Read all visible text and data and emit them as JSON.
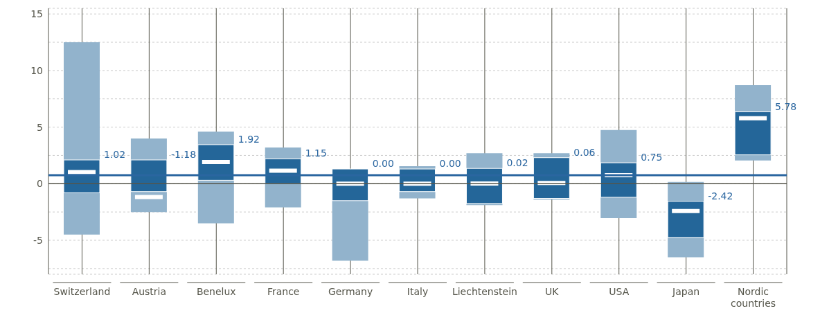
{
  "chart_data": {
    "type": "box",
    "categories": [
      "Switzerland",
      "Austria",
      "Benelux",
      "France",
      "Germany",
      "Italy",
      "Liechtenstein",
      "UK",
      "USA",
      "Japan",
      "Nordic countries"
    ],
    "series": [
      {
        "color": "#246699",
        "boxes": [
          {
            "low": -4.5,
            "q1": -0.8,
            "median": 1.02,
            "q3": 2.1,
            "high": 12.5
          },
          {
            "low": -2.5,
            "q1": -0.7,
            "median": -1.18,
            "q3": 2.1,
            "high": 4.0
          },
          {
            "low": -3.5,
            "q1": 0.3,
            "median": 1.92,
            "q3": 3.45,
            "high": 4.6
          },
          {
            "low": -2.1,
            "q1": 0.0,
            "median": 1.15,
            "q3": 2.2,
            "high": 3.2
          },
          {
            "low": -6.8,
            "q1": -1.5,
            "median": 0.0,
            "q3": 1.3,
            "high": 1.3
          },
          {
            "low": -1.3,
            "q1": -0.7,
            "median": 0.0,
            "q3": 1.3,
            "high": 1.55
          },
          {
            "low": -1.9,
            "q1": -1.75,
            "median": 0.02,
            "q3": 1.35,
            "high": 2.7
          },
          {
            "low": -1.4,
            "q1": -1.3,
            "median": 0.06,
            "q3": 2.3,
            "high": 2.7
          },
          {
            "low": -3.05,
            "q1": -1.2,
            "median": 0.75,
            "q3": 1.85,
            "high": 4.75
          },
          {
            "low": -6.5,
            "q1": -4.75,
            "median": -2.42,
            "q3": -1.55,
            "high": 0.15
          },
          {
            "low": 2.05,
            "q1": 2.55,
            "median": 5.78,
            "q3": 6.35,
            "high": 8.7
          }
        ],
        "value_labels": [
          "1.02",
          "-1.18",
          "1.92",
          "1.15",
          "0.00",
          "0.00",
          "0.02",
          "0.06",
          "0.75",
          "-2.42",
          "5.78"
        ]
      }
    ],
    "ylim": [
      -8,
      15.5
    ],
    "yticks": [
      {
        "value": -7.5,
        "label": null
      },
      -5,
      {
        "value": -2.5,
        "label": null
      },
      0,
      {
        "value": 2.5,
        "label": null
      },
      5,
      {
        "value": 7.5,
        "label": null
      },
      10,
      {
        "value": 12.5,
        "label": null
      },
      15
    ],
    "grid": true,
    "ref_lines": [
      {
        "axis": "y",
        "value": 0,
        "label": null,
        "color": "#55554a"
      },
      {
        "axis": "y",
        "value": 0.75,
        "label": null,
        "color": "#2a66a0"
      }
    ]
  }
}
